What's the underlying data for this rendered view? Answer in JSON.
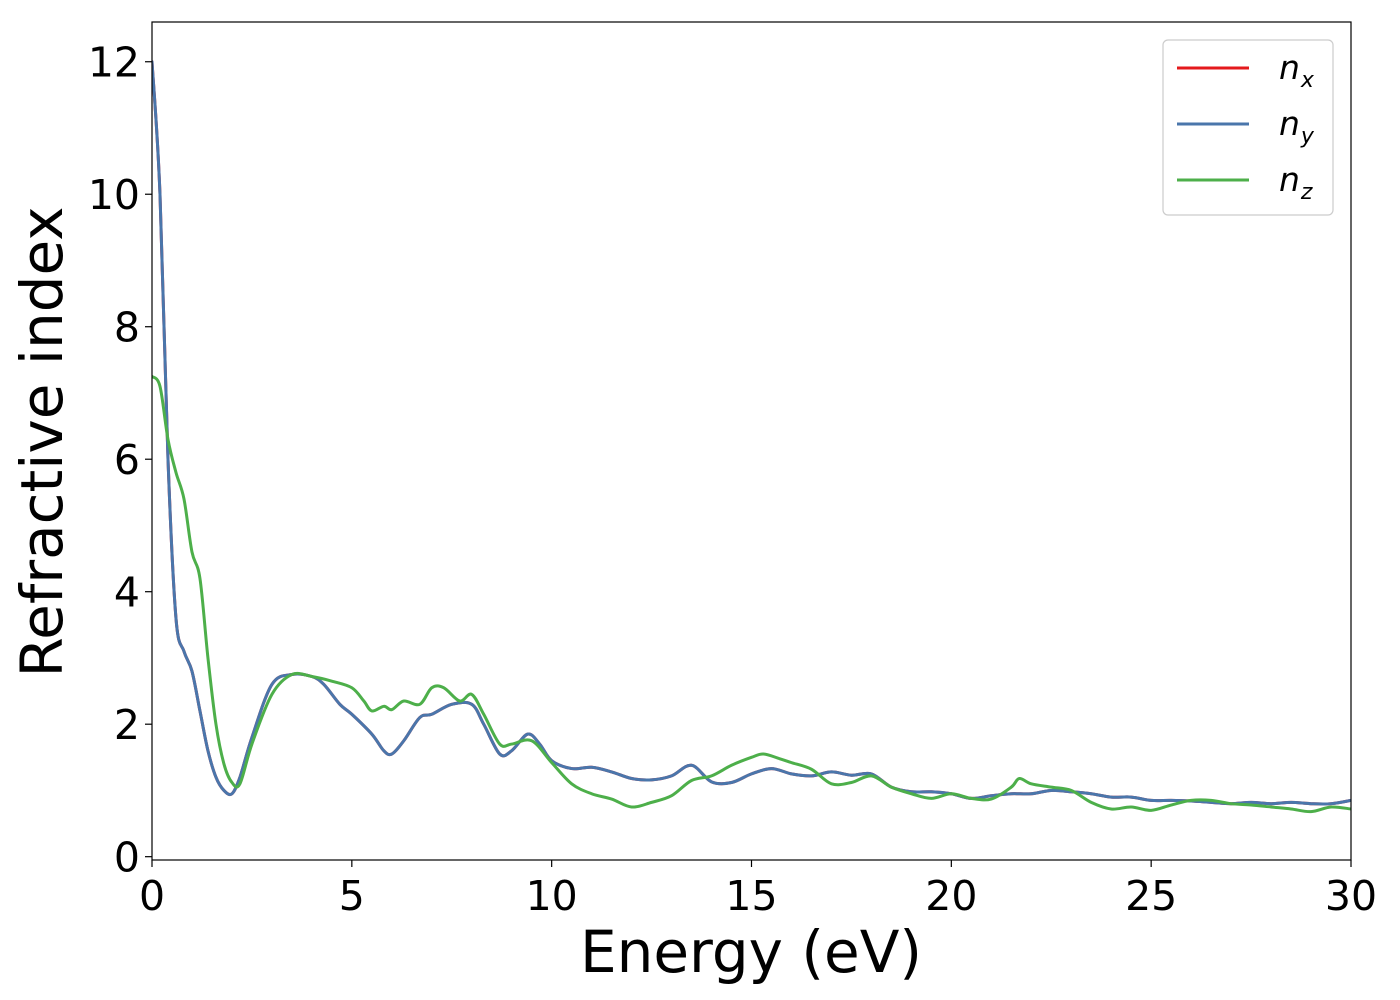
{
  "chart_data": {
    "type": "line",
    "xlabel": "Energy (eV)",
    "ylabel": "Refractive index",
    "xlim": [
      0,
      30
    ],
    "ylim": [
      -0.05,
      12.6
    ],
    "xticks": [
      0,
      5,
      10,
      15,
      20,
      25,
      30
    ],
    "yticks": [
      0,
      2,
      4,
      6,
      8,
      10,
      12
    ],
    "grid": false,
    "legend_position": "top-right",
    "series": [
      {
        "name": "n",
        "subscript": "x",
        "color": "#e41a1c",
        "x": [
          0,
          0.2,
          0.4,
          0.6,
          0.8,
          1.0,
          1.2,
          1.4,
          1.6,
          1.8,
          2.0,
          2.2,
          2.5,
          3.0,
          3.5,
          4.0,
          4.3,
          4.7,
          5.0,
          5.5,
          5.8,
          6.0,
          6.3,
          6.7,
          7.0,
          7.5,
          8.0,
          8.3,
          8.7,
          9.0,
          9.4,
          9.7,
          10.0,
          10.5,
          11.0,
          11.5,
          12.0,
          12.5,
          13.0,
          13.5,
          14.0,
          14.5,
          15.0,
          15.5,
          16.0,
          16.5,
          17.0,
          17.5,
          18.0,
          18.5,
          19.0,
          19.5,
          20.0,
          20.5,
          21.0,
          21.5,
          22.0,
          22.5,
          23.0,
          23.5,
          24.0,
          24.5,
          25.0,
          25.5,
          26.0,
          26.5,
          27.0,
          27.5,
          28.0,
          28.5,
          29.0,
          29.5,
          30.0
        ],
        "values": [
          12.0,
          10.0,
          6.0,
          3.6,
          3.1,
          2.8,
          2.2,
          1.6,
          1.2,
          1.0,
          0.95,
          1.2,
          1.8,
          2.6,
          2.75,
          2.72,
          2.6,
          2.3,
          2.15,
          1.85,
          1.6,
          1.55,
          1.75,
          2.1,
          2.15,
          2.3,
          2.3,
          2.0,
          1.55,
          1.6,
          1.85,
          1.7,
          1.45,
          1.33,
          1.35,
          1.28,
          1.18,
          1.16,
          1.22,
          1.38,
          1.13,
          1.12,
          1.25,
          1.33,
          1.25,
          1.22,
          1.28,
          1.23,
          1.25,
          1.05,
          0.98,
          0.98,
          0.95,
          0.88,
          0.92,
          0.95,
          0.95,
          1.0,
          0.98,
          0.95,
          0.9,
          0.9,
          0.85,
          0.85,
          0.84,
          0.82,
          0.8,
          0.82,
          0.8,
          0.82,
          0.8,
          0.8,
          0.85
        ]
      },
      {
        "name": "n",
        "subscript": "y",
        "color": "#4a76ab",
        "x": [
          0,
          0.2,
          0.4,
          0.6,
          0.8,
          1.0,
          1.2,
          1.4,
          1.6,
          1.8,
          2.0,
          2.2,
          2.5,
          3.0,
          3.5,
          4.0,
          4.3,
          4.7,
          5.0,
          5.5,
          5.8,
          6.0,
          6.3,
          6.7,
          7.0,
          7.5,
          8.0,
          8.3,
          8.7,
          9.0,
          9.4,
          9.7,
          10.0,
          10.5,
          11.0,
          11.5,
          12.0,
          12.5,
          13.0,
          13.5,
          14.0,
          14.5,
          15.0,
          15.5,
          16.0,
          16.5,
          17.0,
          17.5,
          18.0,
          18.5,
          19.0,
          19.5,
          20.0,
          20.5,
          21.0,
          21.5,
          22.0,
          22.5,
          23.0,
          23.5,
          24.0,
          24.5,
          25.0,
          25.5,
          26.0,
          26.5,
          27.0,
          27.5,
          28.0,
          28.5,
          29.0,
          29.5,
          30.0
        ],
        "values": [
          12.0,
          10.0,
          6.0,
          3.6,
          3.1,
          2.8,
          2.2,
          1.6,
          1.2,
          1.0,
          0.95,
          1.2,
          1.8,
          2.6,
          2.75,
          2.72,
          2.6,
          2.3,
          2.15,
          1.85,
          1.6,
          1.55,
          1.75,
          2.1,
          2.15,
          2.3,
          2.3,
          2.0,
          1.55,
          1.6,
          1.85,
          1.7,
          1.45,
          1.33,
          1.35,
          1.28,
          1.18,
          1.16,
          1.22,
          1.38,
          1.13,
          1.12,
          1.25,
          1.33,
          1.25,
          1.22,
          1.28,
          1.23,
          1.25,
          1.05,
          0.98,
          0.98,
          0.95,
          0.88,
          0.92,
          0.95,
          0.95,
          1.0,
          0.98,
          0.95,
          0.9,
          0.9,
          0.85,
          0.85,
          0.84,
          0.82,
          0.8,
          0.82,
          0.8,
          0.82,
          0.8,
          0.8,
          0.85
        ]
      },
      {
        "name": "n",
        "subscript": "z",
        "color": "#4daf4a",
        "x": [
          0,
          0.2,
          0.4,
          0.6,
          0.8,
          1.0,
          1.2,
          1.4,
          1.6,
          1.8,
          2.0,
          2.2,
          2.5,
          3.0,
          3.5,
          4.0,
          4.5,
          5.0,
          5.3,
          5.5,
          5.8,
          6.0,
          6.3,
          6.7,
          7.0,
          7.3,
          7.7,
          8.0,
          8.3,
          8.7,
          9.0,
          9.5,
          10.0,
          10.5,
          11.0,
          11.5,
          12.0,
          12.5,
          13.0,
          13.5,
          14.0,
          14.5,
          15.0,
          15.3,
          15.7,
          16.0,
          16.5,
          17.0,
          17.5,
          18.0,
          18.5,
          19.0,
          19.5,
          20.0,
          20.5,
          21.0,
          21.5,
          21.7,
          22.0,
          22.5,
          23.0,
          23.5,
          24.0,
          24.5,
          25.0,
          25.5,
          26.0,
          26.5,
          27.0,
          27.5,
          28.0,
          28.5,
          29.0,
          29.5,
          30.0
        ],
        "values": [
          7.25,
          7.1,
          6.3,
          5.8,
          5.4,
          4.6,
          4.2,
          3.0,
          2.0,
          1.4,
          1.12,
          1.1,
          1.7,
          2.45,
          2.75,
          2.72,
          2.65,
          2.55,
          2.35,
          2.2,
          2.27,
          2.22,
          2.35,
          2.3,
          2.55,
          2.55,
          2.35,
          2.45,
          2.15,
          1.7,
          1.7,
          1.75,
          1.42,
          1.1,
          0.95,
          0.87,
          0.75,
          0.82,
          0.92,
          1.15,
          1.22,
          1.38,
          1.5,
          1.55,
          1.48,
          1.42,
          1.32,
          1.1,
          1.12,
          1.22,
          1.05,
          0.95,
          0.88,
          0.95,
          0.88,
          0.87,
          1.05,
          1.18,
          1.1,
          1.05,
          1.0,
          0.82,
          0.72,
          0.75,
          0.7,
          0.78,
          0.85,
          0.85,
          0.8,
          0.78,
          0.75,
          0.72,
          0.68,
          0.75,
          0.72
        ]
      }
    ]
  }
}
